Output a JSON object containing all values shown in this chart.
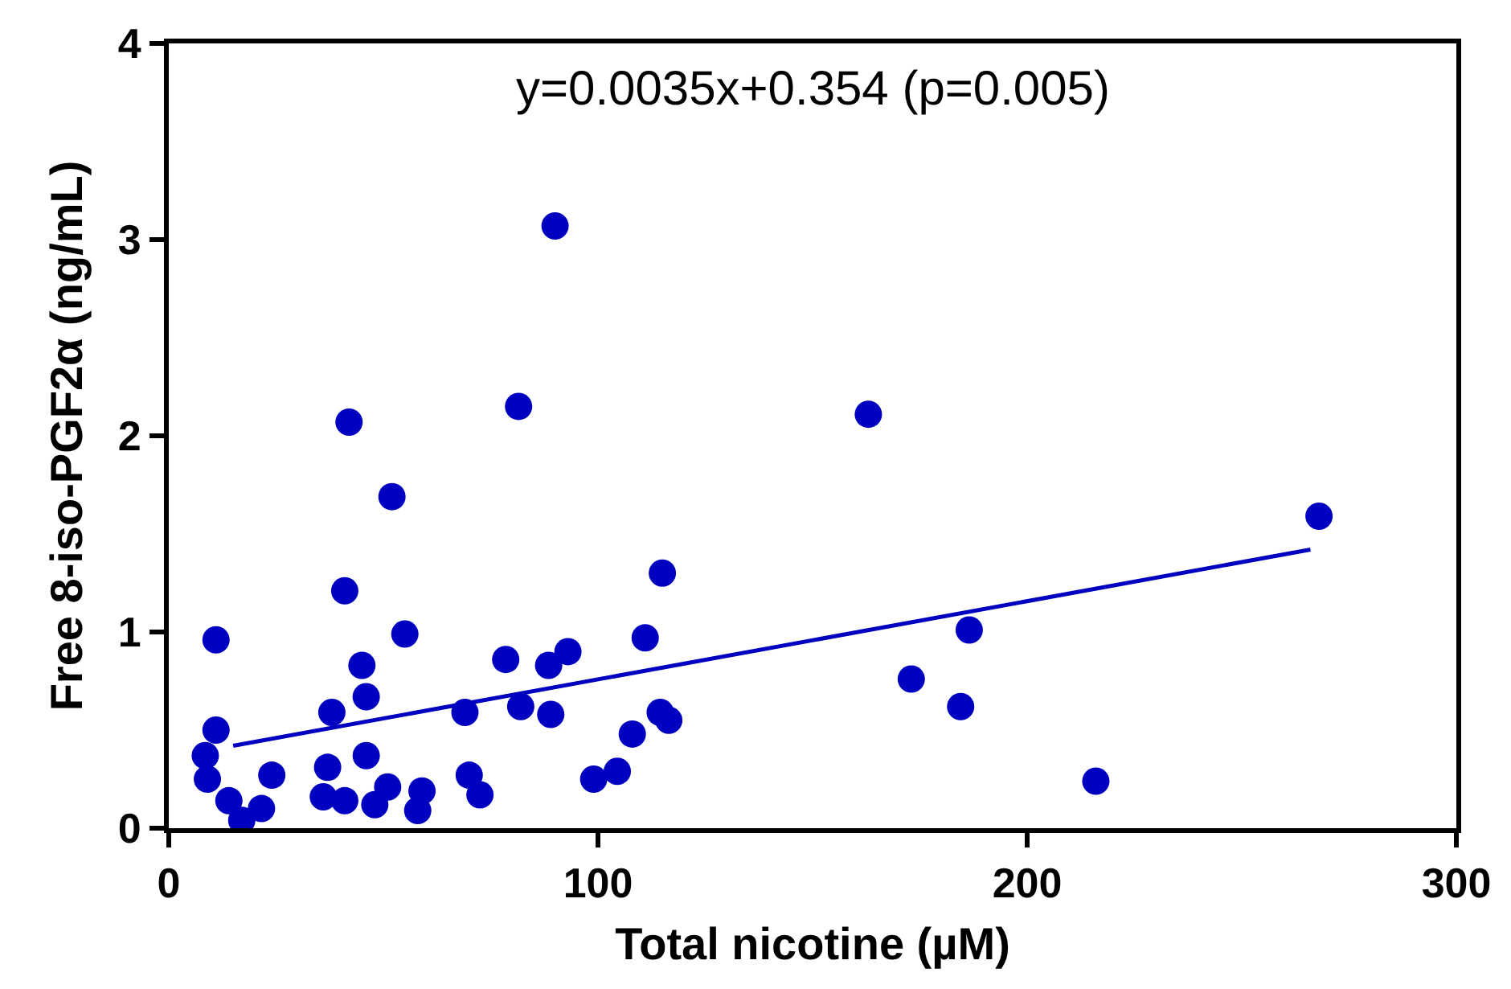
{
  "chart_data": {
    "type": "scatter",
    "xlabel": "Total nicotine (µM)",
    "ylabel": "Free 8-iso-PGF2α (ng/mL)",
    "annotations": [
      "y=0.0035x+0.354 (p=0.005)"
    ],
    "xlim": [
      0,
      300
    ],
    "xticks": [
      0,
      100,
      200,
      300
    ],
    "ylim": [
      0,
      4
    ],
    "yticks": [
      0,
      1,
      2,
      3,
      4
    ],
    "grid": false,
    "series": [
      {
        "color": "#0000c0",
        "marker": "circle",
        "x": [
          11,
          11,
          8.5,
          9,
          14,
          17,
          21.6,
          24,
          41,
          55,
          45,
          46,
          38,
          46,
          37,
          36,
          41,
          48,
          51,
          59,
          58,
          70,
          72.5,
          69,
          90,
          81.5,
          163,
          115,
          111,
          78.5,
          93,
          88.5,
          82,
          89,
          114.5,
          116.5,
          108,
          99,
          104.5,
          186.5,
          173,
          184.5,
          52,
          42,
          216,
          268
        ],
        "values": [
          0.96,
          0.5,
          0.37,
          0.25,
          0.14,
          0.04,
          0.1,
          0.27,
          1.21,
          0.99,
          0.83,
          0.67,
          0.59,
          0.37,
          0.31,
          0.16,
          0.14,
          0.12,
          0.21,
          0.19,
          0.09,
          0.27,
          0.17,
          0.59,
          3.07,
          2.15,
          2.11,
          1.3,
          0.97,
          0.86,
          0.9,
          0.83,
          0.62,
          0.58,
          0.59,
          0.55,
          0.48,
          0.25,
          0.29,
          1.01,
          0.76,
          0.62,
          1.69,
          2.07,
          0.24,
          1.59
        ]
      },
      {
        "type": "line",
        "color": "#0000c0",
        "line_style": "solid",
        "marker": "none",
        "x": [
          15,
          266
        ],
        "values": [
          0.42,
          1.42
        ]
      }
    ]
  }
}
